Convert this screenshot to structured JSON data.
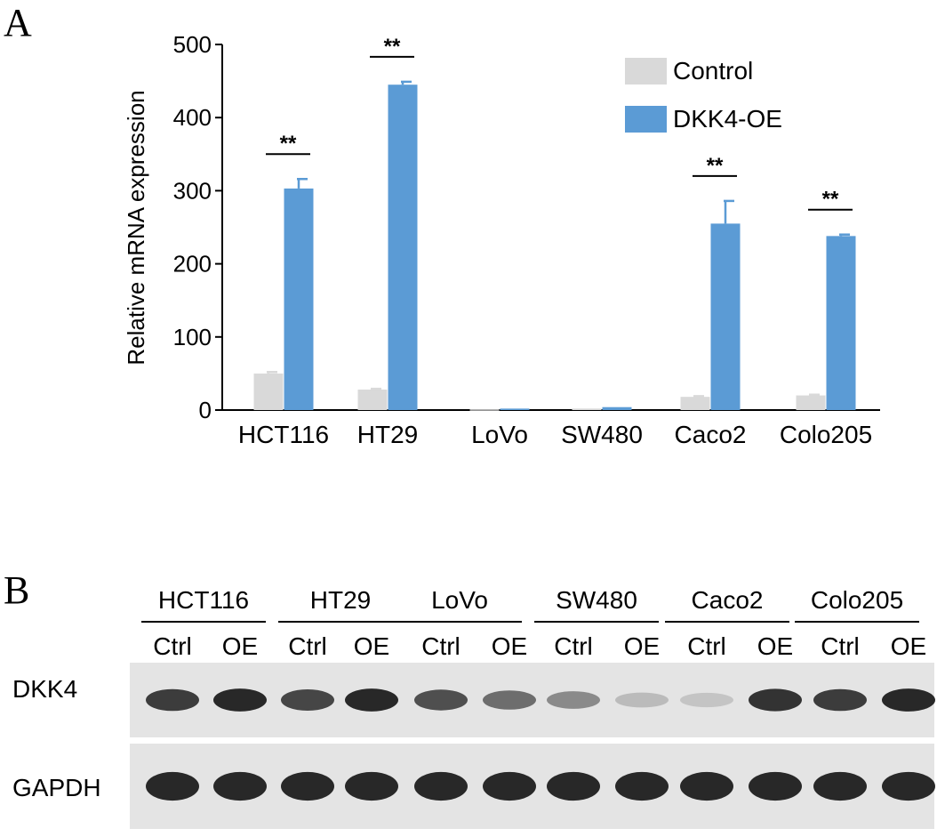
{
  "panels": {
    "a_label": "A",
    "b_label": "B"
  },
  "chart_data": {
    "type": "bar",
    "title": "",
    "xlabel": "",
    "ylabel": "Relative mRNA expression",
    "ylim": [
      0,
      500
    ],
    "yticks": [
      0,
      100,
      200,
      300,
      400,
      500
    ],
    "categories": [
      "HCT116",
      "HT29",
      "LoVo",
      "SW480",
      "Caco2",
      "Colo205"
    ],
    "series": [
      {
        "name": "Control",
        "color": "#d9d9d9",
        "values": [
          50,
          28,
          1,
          2,
          18,
          20
        ],
        "errors": [
          2,
          1,
          0,
          0,
          1,
          1
        ]
      },
      {
        "name": "DKK4-OE",
        "color": "#5b9bd5",
        "values": [
          303,
          445,
          2,
          4,
          255,
          238
        ],
        "errors": [
          13,
          4,
          0,
          0,
          31,
          2
        ]
      }
    ],
    "significance": [
      "**",
      "**",
      "",
      "",
      "**",
      "**"
    ],
    "legend_position": "top-right",
    "grid": false
  },
  "blot": {
    "groups": [
      "HCT116",
      "HT29",
      "LoVo",
      "SW480",
      "Caco2",
      "Colo205"
    ],
    "lanes": [
      "Ctrl",
      "OE",
      "Ctrl",
      "OE",
      "Ctrl",
      "OE",
      "Ctrl",
      "OE",
      "Ctrl",
      "OE",
      "Ctrl",
      "OE"
    ],
    "rows": [
      {
        "label": "DKK4",
        "intensities": [
          0.85,
          0.95,
          0.8,
          0.95,
          0.75,
          0.6,
          0.45,
          0.2,
          0.15,
          0.9,
          0.85,
          0.95
        ]
      },
      {
        "label": "GAPDH",
        "intensities": [
          0.95,
          0.95,
          0.95,
          0.95,
          0.95,
          0.95,
          0.95,
          0.95,
          0.95,
          0.95,
          0.95,
          0.95
        ]
      }
    ]
  }
}
